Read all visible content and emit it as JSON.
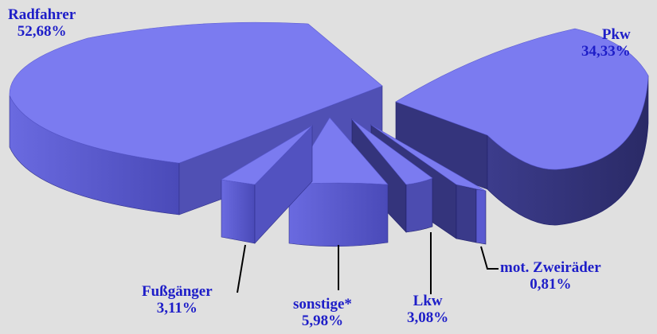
{
  "chart_data": {
    "type": "pie",
    "style": "3d-exploded",
    "slices": [
      {
        "label": "Radfahrer",
        "value_text": "52,68%",
        "value": 52.68
      },
      {
        "label": "Pkw",
        "value_text": "34,33%",
        "value": 34.33
      },
      {
        "label": "mot. Zweiräder",
        "value_text": "0,81%",
        "value": 0.81
      },
      {
        "label": "Lkw",
        "value_text": "3,08%",
        "value": 3.08
      },
      {
        "label": "sonstige*",
        "value_text": "5,98%",
        "value": 5.98
      },
      {
        "label": "Fußgänger",
        "value_text": "3,11%",
        "value": 3.11
      }
    ],
    "colors": {
      "top": "#7b7bf0",
      "side_light": "#6060d8",
      "side_dark": "#35357a",
      "edge": "#20206a",
      "label": "#1e1ec8",
      "background": "#e0e0e0"
    }
  }
}
